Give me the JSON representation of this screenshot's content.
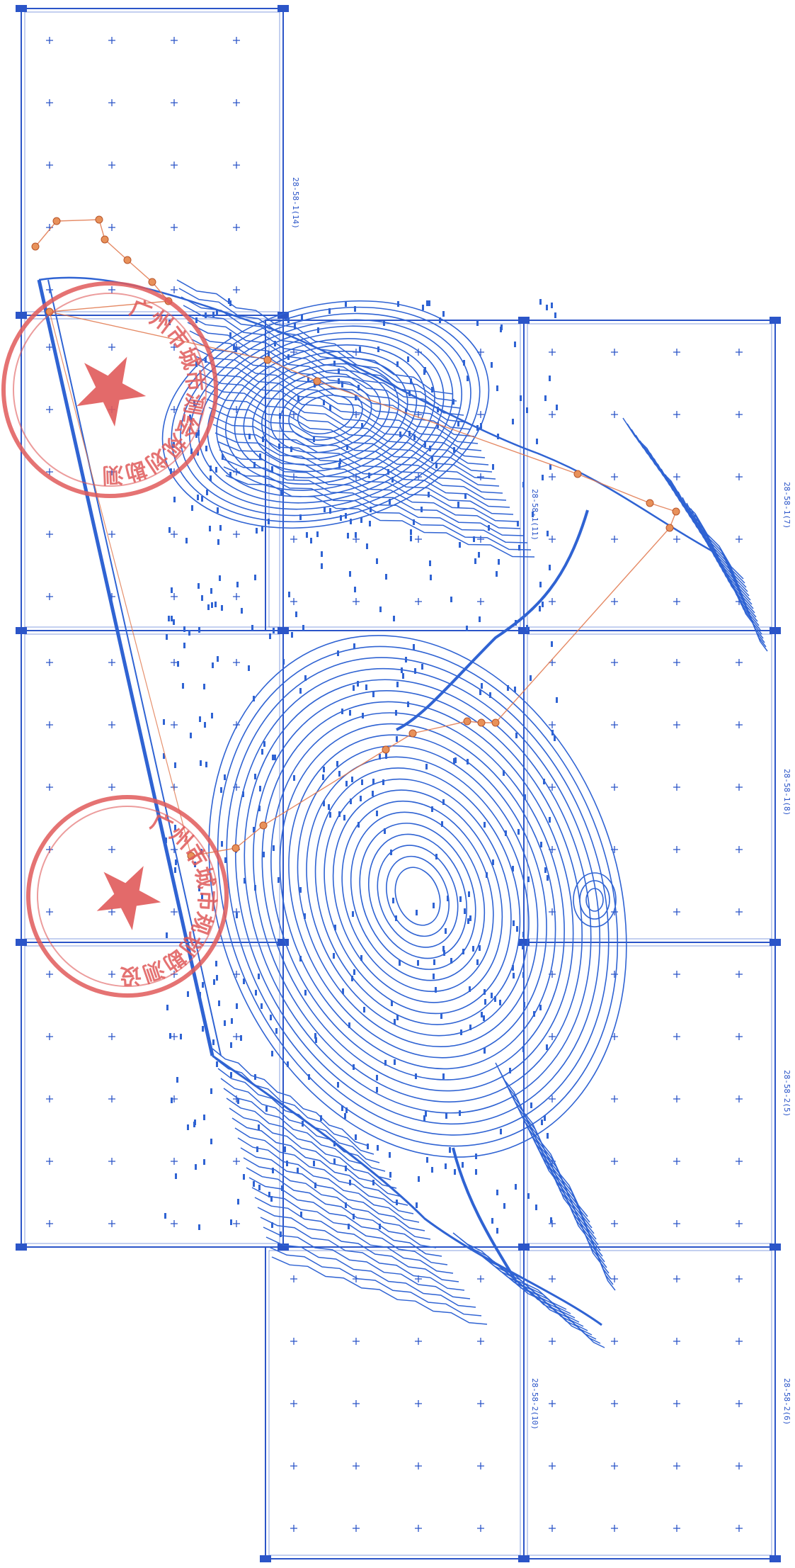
{
  "map": {
    "colors": {
      "grid": "#2b55c8",
      "contour": "#2f63d3",
      "route": "#e0764a",
      "marker": "#e8915a",
      "stamp": "#e05a5a",
      "background": "#ffffff"
    },
    "sheet_labels": [
      "28-58-1(14)",
      "28-58-1(11)",
      "28-58-1(7)",
      "28-58-1(8)",
      "28-58-2(5)",
      "28-58-2(10)",
      "28-58-2(6)"
    ],
    "stamps": [
      {
        "text": "广州市城市测绘规划勘测设计研究院",
        "star_icon": "red-star"
      },
      {
        "text": "广州市城市规划勘测设计研究院",
        "star_icon": "red-star"
      }
    ]
  }
}
